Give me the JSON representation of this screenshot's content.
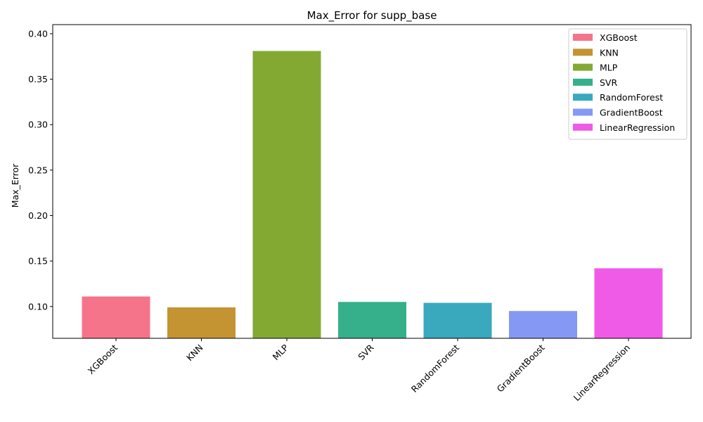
{
  "chart_data": {
    "type": "bar",
    "title": "Max_Error for supp_base",
    "xlabel": "",
    "ylabel": "Max_Error",
    "ylim": [
      0.065,
      0.41
    ],
    "yticks": [
      "0.10",
      "0.15",
      "0.20",
      "0.25",
      "0.30",
      "0.35",
      "0.40"
    ],
    "ytick_values": [
      0.1,
      0.15,
      0.2,
      0.25,
      0.3,
      0.35,
      0.4
    ],
    "categories": [
      "XGBoost",
      "KNN",
      "MLP",
      "SVR",
      "RandomForest",
      "GradientBoost",
      "LinearRegression"
    ],
    "values": [
      0.111,
      0.099,
      0.381,
      0.105,
      0.104,
      0.095,
      0.142
    ],
    "colors": [
      "#f5748a",
      "#c49433",
      "#83a933",
      "#36b08a",
      "#3aa9bd",
      "#8598f3",
      "#ef5ae7"
    ],
    "legend_position": "top-right",
    "grid": false
  }
}
